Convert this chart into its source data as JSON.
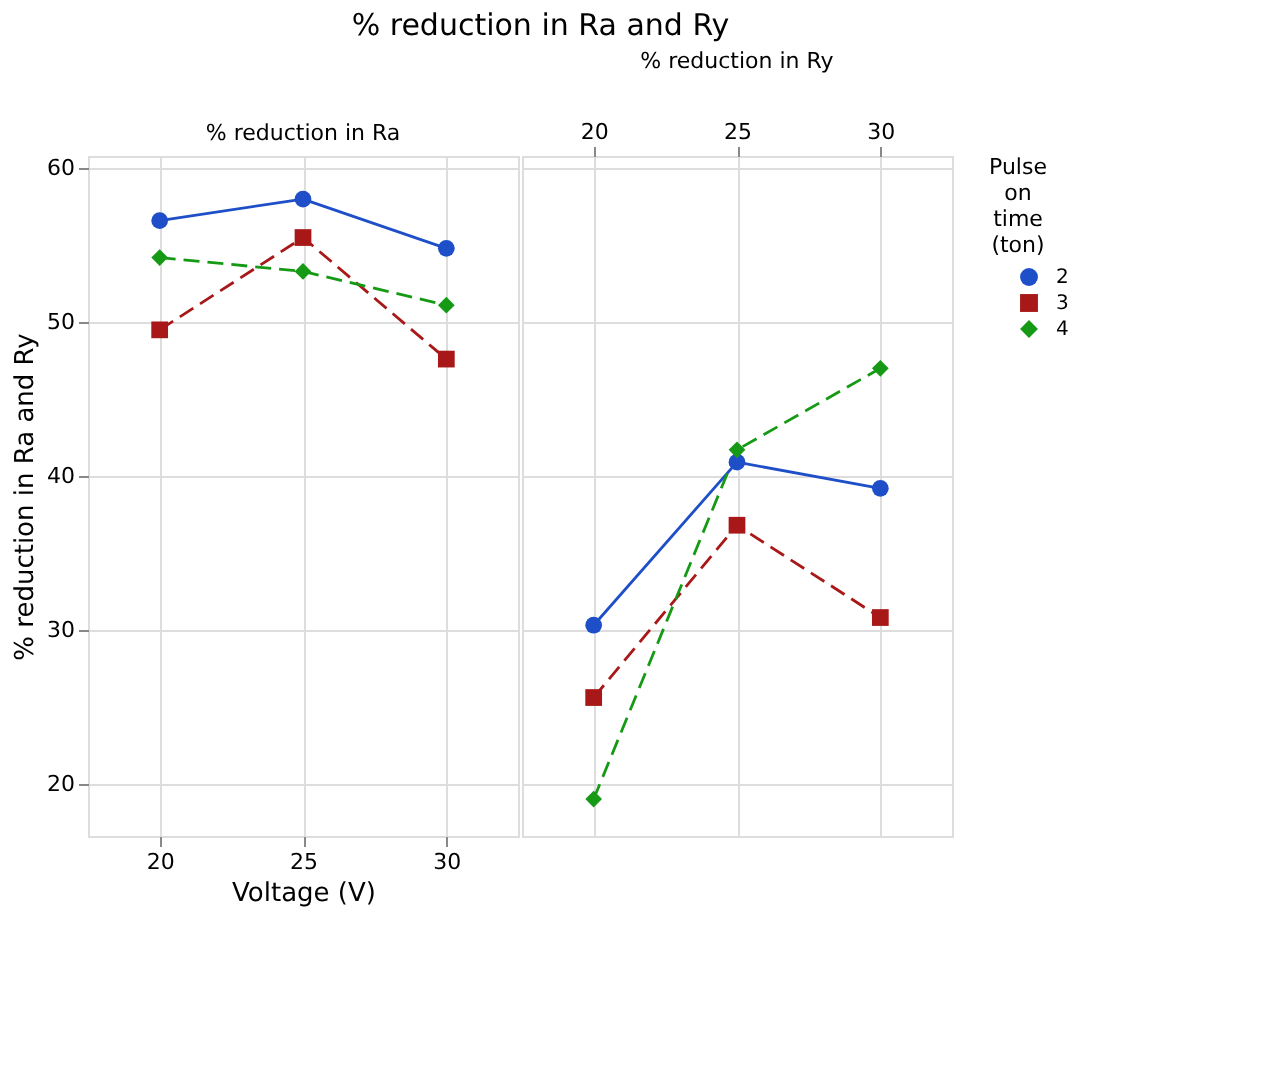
{
  "chart_data": [
    {
      "type": "line",
      "title": "% reduction in Ra and  Ry",
      "subtitle": "% reduction in Ra",
      "xlabel": "Voltage (V)",
      "ylabel": "% reduction in Ra and  Ry",
      "x": [
        20,
        25,
        30
      ],
      "xlim": [
        17.5,
        32.5
      ],
      "xticks": [
        20,
        25,
        30
      ],
      "ylim": [
        16.6,
        60.8
      ],
      "yticks": [
        20,
        30,
        40,
        50,
        60
      ],
      "grid": true,
      "legend": "right",
      "legend_title": "Pulse on time (ton)",
      "series": [
        {
          "name": "2",
          "color": "#1f4fc8",
          "marker": "circle",
          "line_style": "solid",
          "values": [
            56.6,
            58.0,
            54.8
          ]
        },
        {
          "name": "3",
          "color": "#a81818",
          "marker": "square",
          "line_style": "dashed",
          "values": [
            49.5,
            55.5,
            47.6
          ]
        },
        {
          "name": "4",
          "color": "#169a16",
          "marker": "diamond",
          "line_style": "dashed",
          "values": [
            54.2,
            53.3,
            51.1
          ]
        }
      ]
    },
    {
      "type": "line",
      "subtitle": "% reduction in Ry",
      "x": [
        20,
        25,
        30
      ],
      "xlim": [
        17.5,
        32.5
      ],
      "xticks": [
        20,
        25,
        30
      ],
      "ylim": [
        16.6,
        60.8
      ],
      "yticks": [
        20,
        30,
        40,
        50,
        60
      ],
      "grid": true,
      "tick_labels": "x",
      "series": [
        {
          "name": "2",
          "color": "#1f4fc8",
          "marker": "circle",
          "line_style": "solid",
          "values": [
            30.3,
            40.9,
            39.2
          ]
        },
        {
          "name": "3",
          "color": "#a81818",
          "marker": "square",
          "line_style": "dashed",
          "values": [
            25.6,
            36.8,
            30.8
          ]
        },
        {
          "name": "4",
          "color": "#169a16",
          "marker": "diamond",
          "line_style": "dashed",
          "values": [
            19.0,
            41.7,
            47.0
          ]
        }
      ]
    }
  ]
}
